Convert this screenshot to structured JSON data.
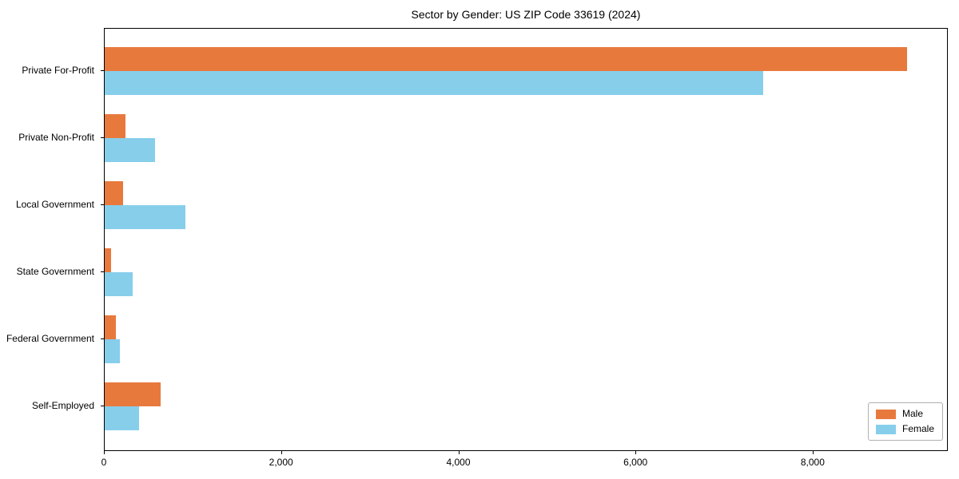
{
  "chart_data": {
    "type": "bar",
    "orientation": "horizontal",
    "title": "Sector by Gender: US ZIP Code 33619 (2024)",
    "categories": [
      "Private For-Profit",
      "Private Non-Profit",
      "Local Government",
      "State Government",
      "Federal Government",
      "Self-Employed"
    ],
    "series": [
      {
        "name": "Male",
        "color": "#e8793d",
        "values": [
          9060,
          235,
          210,
          75,
          130,
          630
        ]
      },
      {
        "name": "Female",
        "color": "#87ceeb",
        "values": [
          7430,
          565,
          910,
          315,
          170,
          385
        ]
      }
    ],
    "xlabel": "",
    "ylabel": "",
    "xlim": [
      0,
      9525
    ],
    "xticks": [
      0,
      2000,
      4000,
      6000,
      8000
    ],
    "xtick_labels": [
      "0",
      "2,000",
      "4,000",
      "6,000",
      "8,000"
    ],
    "grid": false,
    "legend": {
      "position": "lower right",
      "entries": [
        "Male",
        "Female"
      ]
    },
    "colors": {
      "background": "#ffffff",
      "frame": "#000000",
      "text": "#000000",
      "legend_border": "#b0b0b0"
    }
  }
}
